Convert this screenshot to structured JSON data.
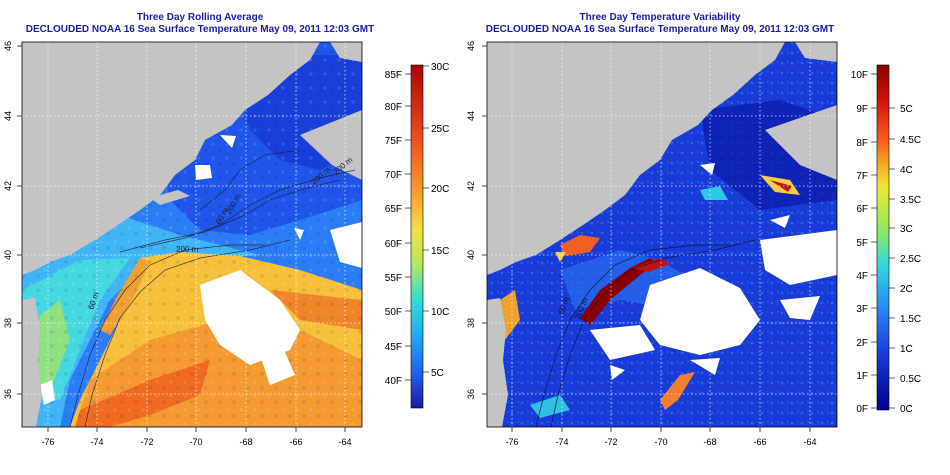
{
  "left_panel": {
    "title": "Three Day Rolling Average",
    "subtitle": "DECLOUDED NOAA 16 Sea Surface Temperature May 09, 2011 12:03 GMT",
    "x_ticks": [
      "-76",
      "-74",
      "-72",
      "-70",
      "-68",
      "-66",
      "-64"
    ],
    "y_ticks": [
      "36",
      "38",
      "40",
      "42",
      "44",
      "46"
    ],
    "contour_labels": [
      "60 m",
      "200 m",
      "60 m",
      "200 m",
      "200 m",
      "200 m"
    ],
    "colorbar": {
      "f_labels": [
        "85F",
        "80F",
        "75F",
        "70F",
        "65F",
        "60F",
        "55F",
        "50F",
        "45F",
        "40F"
      ],
      "c_labels": [
        "30C",
        "25C",
        "20C",
        "15C",
        "10C",
        "5C"
      ],
      "colors": [
        "#1a1aa0",
        "#1f5ff0",
        "#20b0f0",
        "#30e0d0",
        "#b0e860",
        "#f8e040",
        "#f8a030",
        "#f05020",
        "#b00000"
      ]
    }
  },
  "right_panel": {
    "title": "Three Day Temperature Variability",
    "subtitle": "DECLOUDED NOAA 16 Sea Surface Temperature May 09, 2011 12:03 GMT",
    "x_ticks": [
      "-76",
      "-74",
      "-72",
      "-70",
      "-68",
      "-66",
      "-64"
    ],
    "y_ticks": [
      "36",
      "38",
      "40",
      "42",
      "44",
      "46"
    ],
    "contour_labels": [
      "60 m",
      "200 m"
    ],
    "colorbar": {
      "f_labels": [
        "10F",
        "9F",
        "8F",
        "7F",
        "6F",
        "5F",
        "4F",
        "3F",
        "2F",
        "1F",
        "0F"
      ],
      "c_labels": [
        "5C",
        "4.5C",
        "4C",
        "3.5C",
        "3C",
        "2.5C",
        "2C",
        "1.5C",
        "1C",
        "0.5C",
        "0C"
      ],
      "colors": [
        "#00008c",
        "#1a3ad8",
        "#2a8cf0",
        "#30d8e0",
        "#90e860",
        "#f0e830",
        "#f8a020",
        "#f03010",
        "#8c0000"
      ]
    }
  },
  "colors": {
    "land": "#c4c4c4",
    "cloud": "#ffffff",
    "title": "#1c1ca8"
  }
}
